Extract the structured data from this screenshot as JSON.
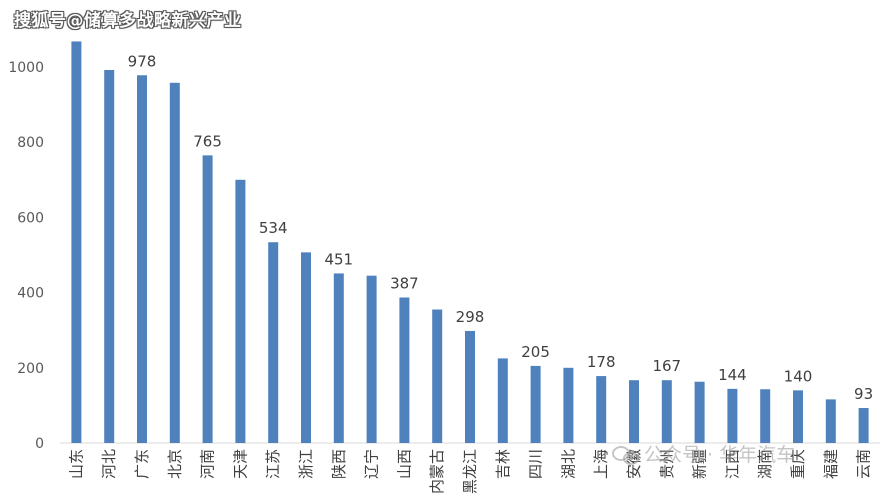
{
  "watermark_top": "搜狐号@储算多战略新兴产业",
  "watermark_bottom": "公众号 · 华年汽车",
  "colors": {
    "bar": "#4f81bd",
    "axis": "#d9d9d9"
  },
  "chart_data": {
    "type": "bar",
    "title": "",
    "xlabel": "",
    "ylabel": "",
    "ylim": [
      0,
      1000
    ],
    "yticks": [
      0,
      200,
      400,
      600,
      800,
      1000
    ],
    "categories": [
      "山东",
      "河北",
      "广东",
      "北京",
      "河南",
      "天津",
      "江苏",
      "浙江",
      "陕西",
      "辽宁",
      "山西",
      "内蒙古",
      "黑龙江",
      "吉林",
      "四川",
      "湖北",
      "上海",
      "安徽",
      "贵州",
      "新疆",
      "江西",
      "湖南",
      "重庆",
      "福建",
      "云南"
    ],
    "values": [
      1068,
      992,
      978,
      958,
      765,
      700,
      534,
      507,
      451,
      445,
      387,
      355,
      298,
      225,
      205,
      200,
      178,
      167,
      167,
      163,
      144,
      143,
      140,
      116,
      93
    ],
    "data_labels": [
      "",
      "",
      "978",
      "",
      "765",
      "",
      "534",
      "",
      "451",
      "",
      "387",
      "",
      "298",
      "",
      "205",
      "",
      "178",
      "",
      "167",
      "",
      "144",
      "",
      "140",
      "",
      "93"
    ]
  }
}
